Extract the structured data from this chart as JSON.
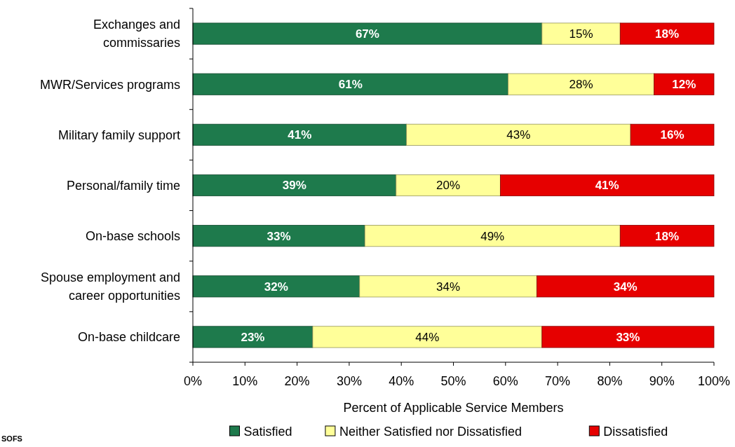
{
  "chart_data": {
    "type": "bar",
    "orientation": "horizontal",
    "stacked": true,
    "categories": [
      "Exchanges and commissaries",
      "MWR/Services programs",
      "Military family support",
      "Personal/family time",
      "On-base schools",
      "Spouse employment and career opportunities",
      "On-base childcare"
    ],
    "series": [
      {
        "name": "Satisfied",
        "color": "#1e7a4c",
        "values": [
          67,
          60.5,
          41,
          39,
          33,
          32,
          23
        ],
        "value_labels": [
          "67%",
          "61%",
          "41%",
          "39%",
          "33%",
          "32%",
          "23%"
        ]
      },
      {
        "name": "Neither Satisfied nor Dissatisfied",
        "color": "#ffff99",
        "values": [
          15,
          28,
          43,
          20,
          49,
          34,
          44
        ],
        "value_labels": [
          "15%",
          "28%",
          "43%",
          "20%",
          "49%",
          "34%",
          "44%"
        ]
      },
      {
        "name": "Dissatisfied",
        "color": "#e60000",
        "values": [
          18,
          11.5,
          16,
          41,
          18,
          34,
          33
        ],
        "value_labels": [
          "18%",
          "12%",
          "16%",
          "41%",
          "18%",
          "34%",
          "33%"
        ]
      }
    ],
    "xlim": [
      0,
      100
    ],
    "xticks": [
      {
        "value": 0,
        "label": "0%"
      },
      {
        "value": 10,
        "label": "10%"
      },
      {
        "value": 20,
        "label": "20%"
      },
      {
        "value": 30,
        "label": "30%"
      },
      {
        "value": 40,
        "label": "40%"
      },
      {
        "value": 50,
        "label": "50%"
      },
      {
        "value": 60,
        "label": "60%"
      },
      {
        "value": 70,
        "label": "70%"
      },
      {
        "value": 80,
        "label": "80%"
      },
      {
        "value": 90,
        "label": "90%"
      },
      {
        "value": 100,
        "label": "100%"
      }
    ],
    "xlabel": "Percent of Applicable Service Members",
    "legend": "bottom",
    "annotations": [
      "SOFS"
    ]
  }
}
